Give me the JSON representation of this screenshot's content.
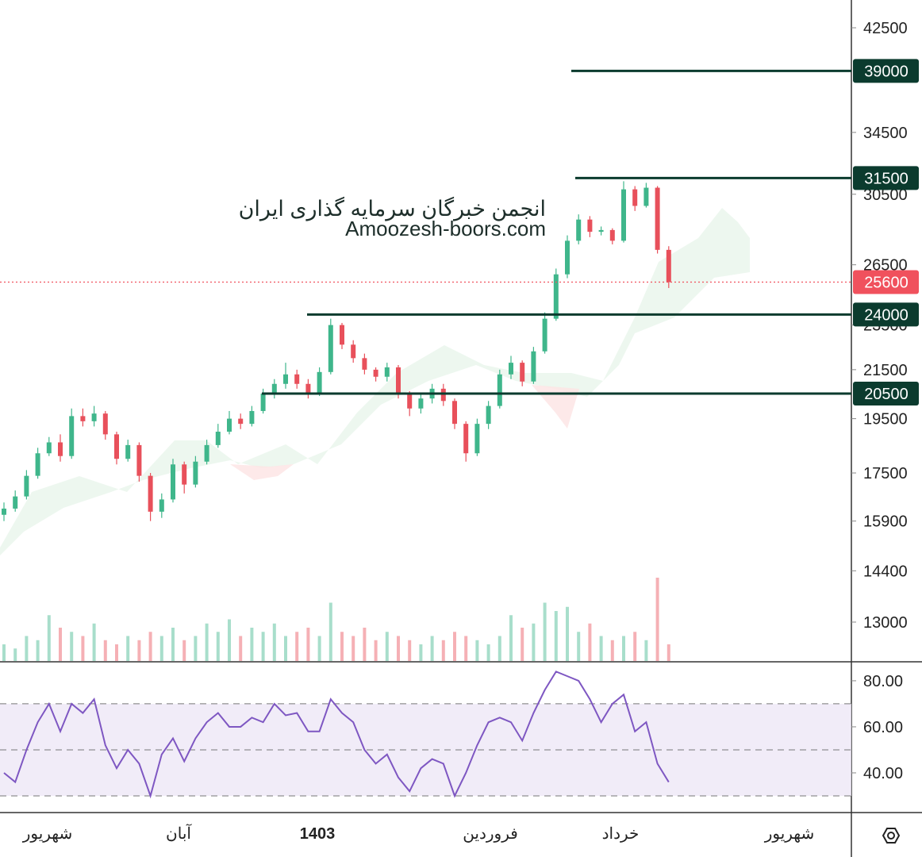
{
  "chart_data": [
    {
      "type": "candlestick",
      "watermark": [
        "انجمن خبرگان سرمایه گذاری ایران",
        "Amoozesh-boors.com"
      ],
      "log_scale": true,
      "ylim": [
        12030,
        44920
      ],
      "yticks": [
        42500,
        34500,
        30500,
        26500,
        23500,
        21500,
        19500,
        17500,
        15900,
        14400,
        13000
      ],
      "levels": [
        39000,
        31500,
        24000,
        20500
      ],
      "last_price": 25600,
      "up_color": "#3fb68b",
      "down_color": "#e8505b",
      "level_color": "#0b3b2e",
      "last_color": "#f0515d",
      "open": [
        16100,
        16300,
        16700,
        17400,
        18200,
        18600,
        18100,
        19600,
        19400,
        19700,
        18900,
        18000,
        18500,
        17400,
        16200,
        16600,
        17800,
        17100,
        17900,
        18500,
        19000,
        19500,
        19300,
        19800,
        20500,
        20900,
        21300,
        20900,
        20500,
        21400,
        23500,
        22600,
        22000,
        21500,
        21200,
        21600,
        20500,
        19900,
        20300,
        20700,
        20200,
        19300,
        18200,
        19300,
        20000,
        21300,
        21800,
        21000,
        22300,
        23800,
        26000,
        27800,
        29000,
        28300,
        28400,
        27800,
        30800,
        29800,
        30900,
        27300
      ],
      "close": [
        16300,
        16700,
        17400,
        18200,
        18600,
        18100,
        19600,
        19400,
        19700,
        18900,
        18000,
        18500,
        17400,
        16200,
        16600,
        17800,
        17100,
        17900,
        18500,
        19000,
        19500,
        19300,
        19800,
        20500,
        20900,
        21300,
        20900,
        20500,
        21400,
        23500,
        22600,
        22000,
        21500,
        21200,
        21600,
        20500,
        19900,
        20300,
        20700,
        20200,
        19300,
        18200,
        19300,
        20000,
        21300,
        21800,
        21000,
        22300,
        23800,
        26000,
        27800,
        29000,
        28300,
        28400,
        27800,
        30800,
        29800,
        30900,
        27300,
        25600
      ],
      "high": [
        16500,
        16900,
        17600,
        18400,
        18800,
        18900,
        19900,
        19900,
        20000,
        19800,
        19000,
        18700,
        18600,
        17500,
        16800,
        18000,
        17900,
        18100,
        18700,
        19300,
        19800,
        19700,
        20000,
        20700,
        21100,
        21800,
        21500,
        21100,
        21600,
        23800,
        23600,
        22800,
        22200,
        21600,
        21800,
        21700,
        20600,
        20500,
        20900,
        20900,
        20300,
        19400,
        19500,
        20200,
        21500,
        22100,
        21900,
        22500,
        24100,
        26300,
        28100,
        29300,
        29200,
        28600,
        28500,
        31300,
        31000,
        31200,
        31000,
        27500
      ],
      "low": [
        15900,
        16200,
        16600,
        17300,
        18100,
        17900,
        18000,
        19200,
        19200,
        18700,
        17800,
        17900,
        17200,
        15900,
        16000,
        16500,
        16800,
        17000,
        17800,
        18400,
        18900,
        19100,
        19200,
        19700,
        20300,
        20700,
        20700,
        20300,
        20400,
        21300,
        22400,
        21800,
        21300,
        21000,
        21000,
        20300,
        19600,
        19700,
        20100,
        20000,
        19100,
        17900,
        18100,
        19100,
        19900,
        21100,
        20800,
        20900,
        22200,
        23700,
        25800,
        27600,
        28000,
        28100,
        27600,
        27700,
        29500,
        29700,
        27100,
        25300
      ],
      "volume": [
        20,
        15,
        30,
        25,
        55,
        40,
        35,
        30,
        45,
        25,
        20,
        30,
        25,
        35,
        30,
        40,
        25,
        30,
        45,
        35,
        50,
        30,
        40,
        35,
        45,
        30,
        35,
        40,
        30,
        70,
        35,
        30,
        40,
        25,
        35,
        30,
        25,
        20,
        30,
        25,
        35,
        30,
        25,
        20,
        30,
        55,
        40,
        45,
        70,
        60,
        65,
        35,
        45,
        30,
        25,
        30,
        35,
        25,
        100,
        20
      ],
      "x_labels": [
        "شهریور",
        "آبان",
        "1403",
        "فروردین",
        "خرداد",
        "شهریور"
      ]
    },
    {
      "type": "line",
      "color": "#7e57c2",
      "ylim": [
        23.1,
        87.9
      ],
      "yticks": [
        {
          "value": 80,
          "label": "80.00"
        },
        {
          "value": 60,
          "label": "60.00"
        },
        {
          "value": 40,
          "label": "40.00"
        }
      ],
      "bands": [
        30,
        50,
        70
      ],
      "values": [
        40,
        36,
        50,
        62,
        70,
        58,
        70,
        66,
        72,
        52,
        42,
        50,
        44,
        30,
        48,
        55,
        45,
        55,
        62,
        66,
        60,
        60,
        64,
        62,
        70,
        65,
        66,
        58,
        58,
        72,
        66,
        62,
        50,
        44,
        48,
        38,
        32,
        42,
        46,
        44,
        30,
        40,
        52,
        62,
        64,
        62,
        54,
        66,
        76,
        84,
        82,
        80,
        72,
        62,
        70,
        74,
        58,
        62,
        44,
        36
      ]
    }
  ]
}
